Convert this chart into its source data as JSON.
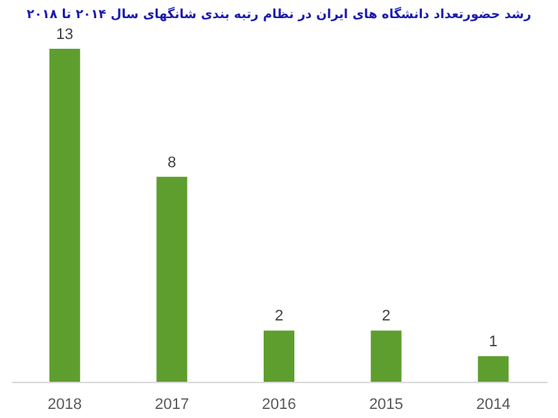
{
  "chart_data": {
    "type": "bar",
    "title": "رشد حضورتعداد دانشگاه های ایران در نظام رتبه بندی شانگهای سال ۲۰۱۴ تا ۲۰۱۸",
    "categories": [
      "2018",
      "2017",
      "2016",
      "2015",
      "2014"
    ],
    "values": [
      13,
      8,
      2,
      2,
      1
    ],
    "color": "#5e9e2e",
    "data_labels": true,
    "grid": false
  }
}
